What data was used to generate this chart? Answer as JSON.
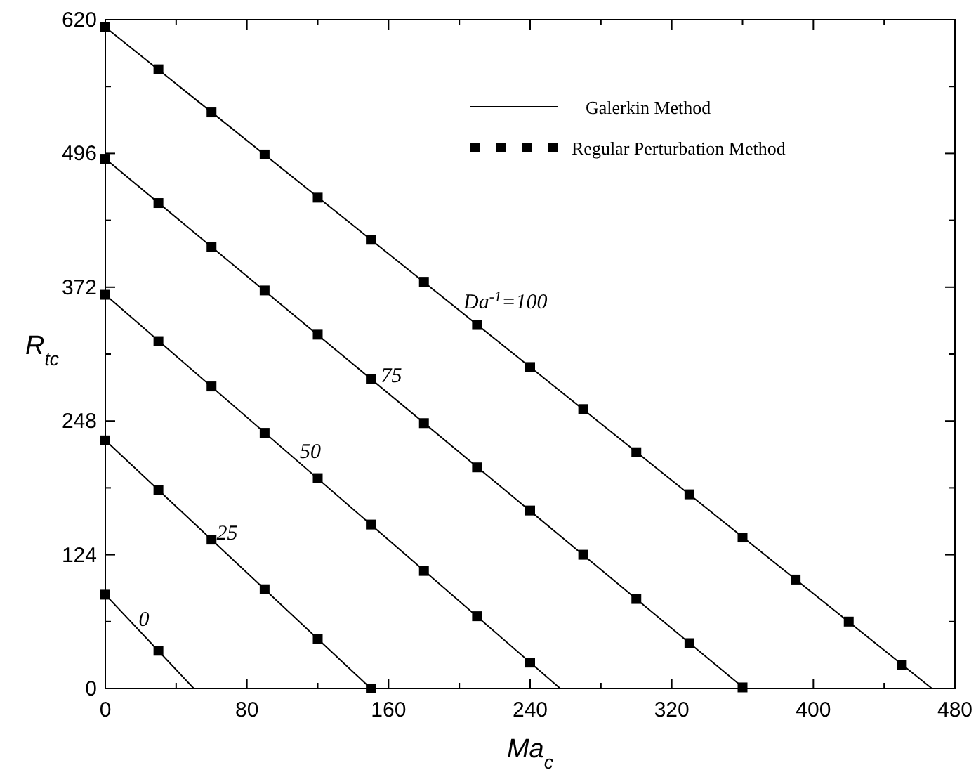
{
  "chart_data": {
    "type": "line",
    "xlabel": "Ma$_{c}$",
    "ylabel": "R$_{tc}$",
    "xlim": [
      0,
      480
    ],
    "ylim": [
      0,
      620
    ],
    "xticks": [
      0,
      {
        "value": 40,
        "label": null
      },
      80,
      {
        "value": 120,
        "label": null
      },
      160,
      {
        "value": 200,
        "label": null
      },
      240,
      {
        "value": 280,
        "label": null
      },
      320,
      {
        "value": 360,
        "label": null
      },
      400,
      {
        "value": 440,
        "label": null
      },
      480
    ],
    "yticks": [
      0,
      {
        "value": 62,
        "label": null
      },
      124,
      {
        "value": 186,
        "label": null
      },
      248,
      {
        "value": 310,
        "label": null
      },
      372,
      {
        "value": 434,
        "label": null
      },
      496,
      {
        "value": 558,
        "label": null
      },
      620
    ],
    "legend": "top right",
    "series": [
      {
        "name": "Galerkin Method",
        "color": "#000000",
        "marker": "none",
        "x": [
          0,
          50,
          null,
          0,
          150,
          null,
          0,
          257,
          null,
          0,
          361,
          null,
          0,
          467
        ],
        "values": [
          87,
          0,
          null,
          230,
          0,
          null,
          365,
          0,
          null,
          491,
          0,
          null,
          613,
          0
        ]
      },
      {
        "name": "Regular Perturbation Method",
        "type": "scatter",
        "color": "#000000",
        "marker": "square",
        "x": [
          0,
          30,
          0,
          30,
          60,
          90,
          120,
          150,
          0,
          30,
          60,
          90,
          120,
          150,
          180,
          210,
          240,
          0,
          30,
          60,
          90,
          120,
          150,
          180,
          210,
          240,
          270,
          300,
          330,
          360,
          0,
          30,
          60,
          90,
          120,
          150,
          180,
          210,
          240,
          270,
          300,
          330,
          360,
          390,
          420,
          450
        ],
        "values": [
          87,
          35,
          230,
          184,
          138,
          92,
          46,
          0,
          365,
          322,
          280,
          237,
          195,
          152,
          109,
          67,
          24,
          491,
          450,
          409,
          369,
          328,
          287,
          246,
          205,
          165,
          124,
          83,
          42,
          1,
          613,
          574,
          534,
          495,
          455,
          416,
          377,
          337,
          298,
          259,
          219,
          180,
          140,
          101,
          62,
          22
        ]
      }
    ],
    "annotations": [
      "0",
      "25",
      "50",
      "75",
      "Da$^{-1}$=100"
    ]
  }
}
